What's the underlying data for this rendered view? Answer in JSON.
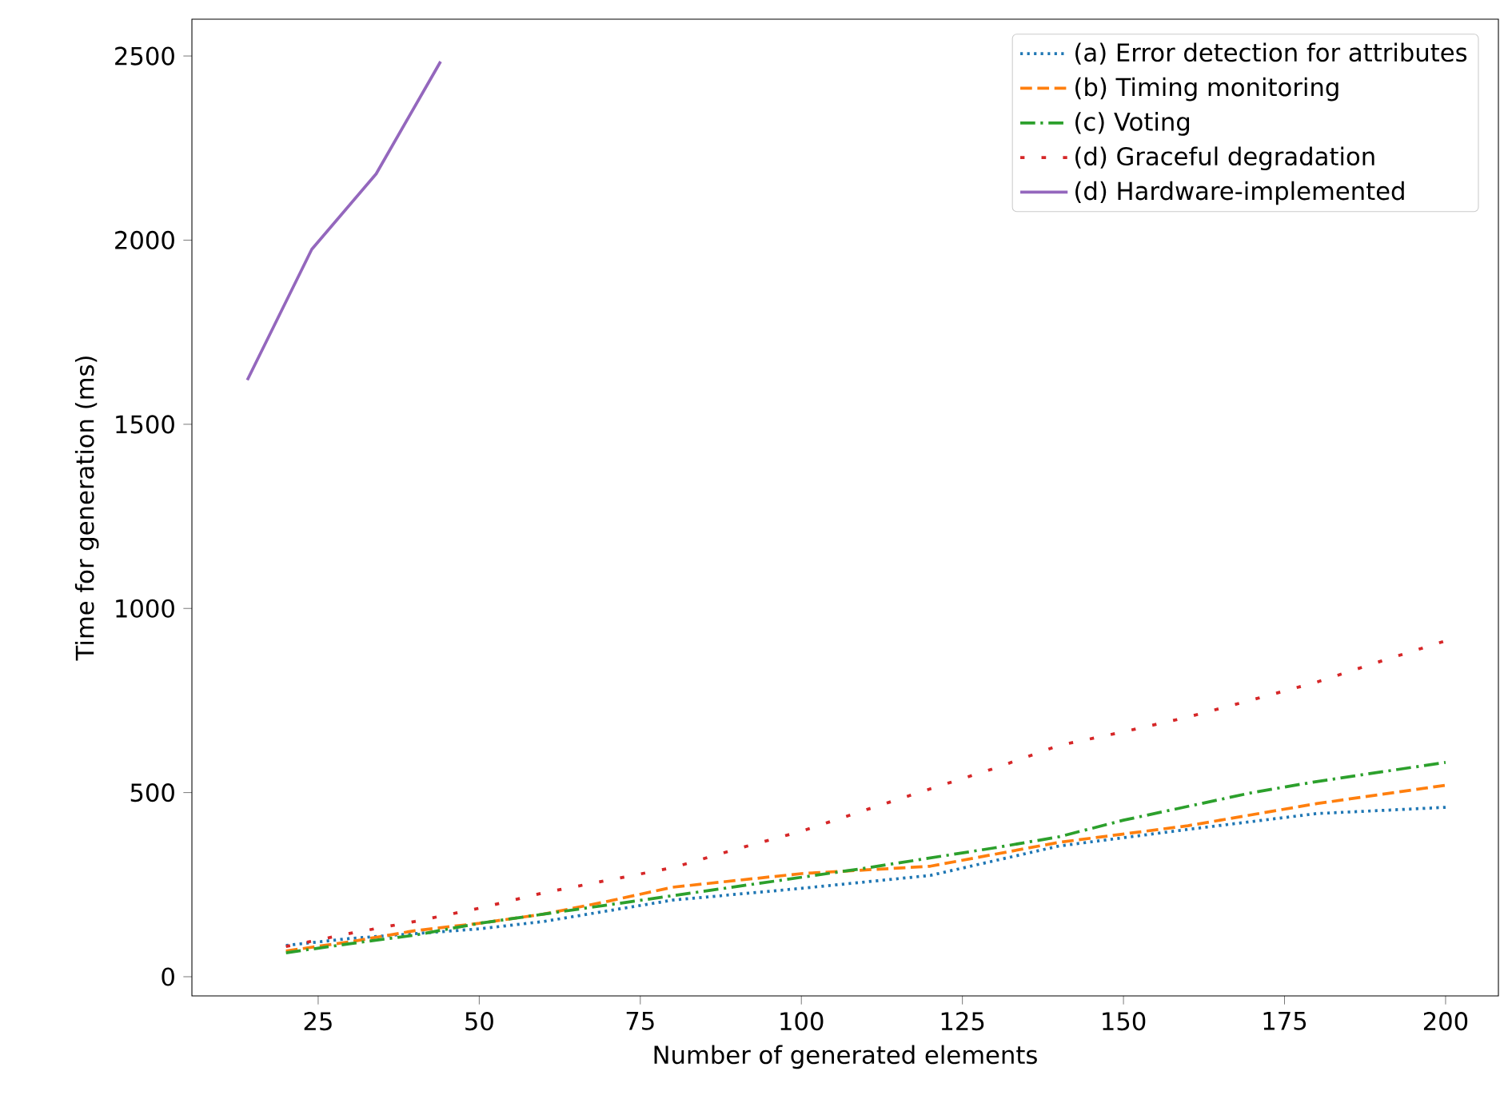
{
  "chart_data": {
    "type": "line",
    "xlabel": "Number of generated elements",
    "ylabel": "Time for generation (ms)",
    "xlim": [
      5.4,
      208.2
    ],
    "ylim": [
      -52,
      2600
    ],
    "xticks": [
      25,
      50,
      75,
      100,
      125,
      150,
      175,
      200
    ],
    "yticks": [
      0,
      500,
      1000,
      1500,
      2000,
      2500
    ],
    "legend": "top right",
    "grid": false,
    "marker": "none",
    "series": [
      {
        "name": "(a) Error detection for attributes",
        "color": "#1f77b4",
        "line_style": "dotted",
        "x": [
          20,
          30,
          50,
          60,
          80,
          100,
          120,
          130,
          140,
          160,
          180,
          200
        ],
        "values": [
          85,
          104,
          130,
          150,
          208,
          240,
          275,
          315,
          355,
          400,
          443,
          460
        ]
      },
      {
        "name": "(b) Timing monitoring",
        "color": "#ff7f0e",
        "line_style": "dashed",
        "x": [
          20,
          30,
          40,
          50,
          60,
          70,
          80,
          100,
          120,
          140,
          160,
          180,
          200
        ],
        "values": [
          70,
          95,
          125,
          145,
          170,
          205,
          243,
          280,
          300,
          365,
          410,
          470,
          520
        ]
      },
      {
        "name": "(c) Voting",
        "color": "#2ca02c",
        "line_style": "dashdot",
        "x": [
          20,
          30,
          40,
          50,
          60,
          70,
          90,
          110,
          130,
          140,
          150,
          170,
          180,
          200
        ],
        "values": [
          65,
          90,
          113,
          145,
          170,
          195,
          245,
          295,
          350,
          380,
          425,
          500,
          530,
          582
        ]
      },
      {
        "name": "(d) Graceful degradation",
        "color": "#d62728",
        "line_style": "loosely dotted",
        "x": [
          20,
          30,
          40,
          50,
          60,
          70,
          80,
          90,
          100,
          110,
          120,
          130,
          140,
          150,
          160,
          170,
          180,
          190,
          200
        ],
        "values": [
          82,
          118,
          150,
          186,
          228,
          262,
          296,
          347,
          395,
          453,
          510,
          566,
          628,
          665,
          705,
          752,
          800,
          857,
          912
        ]
      },
      {
        "name": "(d) Hardware-implemented",
        "color": "#9467bd",
        "line_style": "solid",
        "x": [
          14,
          24,
          34,
          44
        ],
        "values": [
          1620,
          1975,
          2180,
          2485
        ]
      }
    ]
  }
}
